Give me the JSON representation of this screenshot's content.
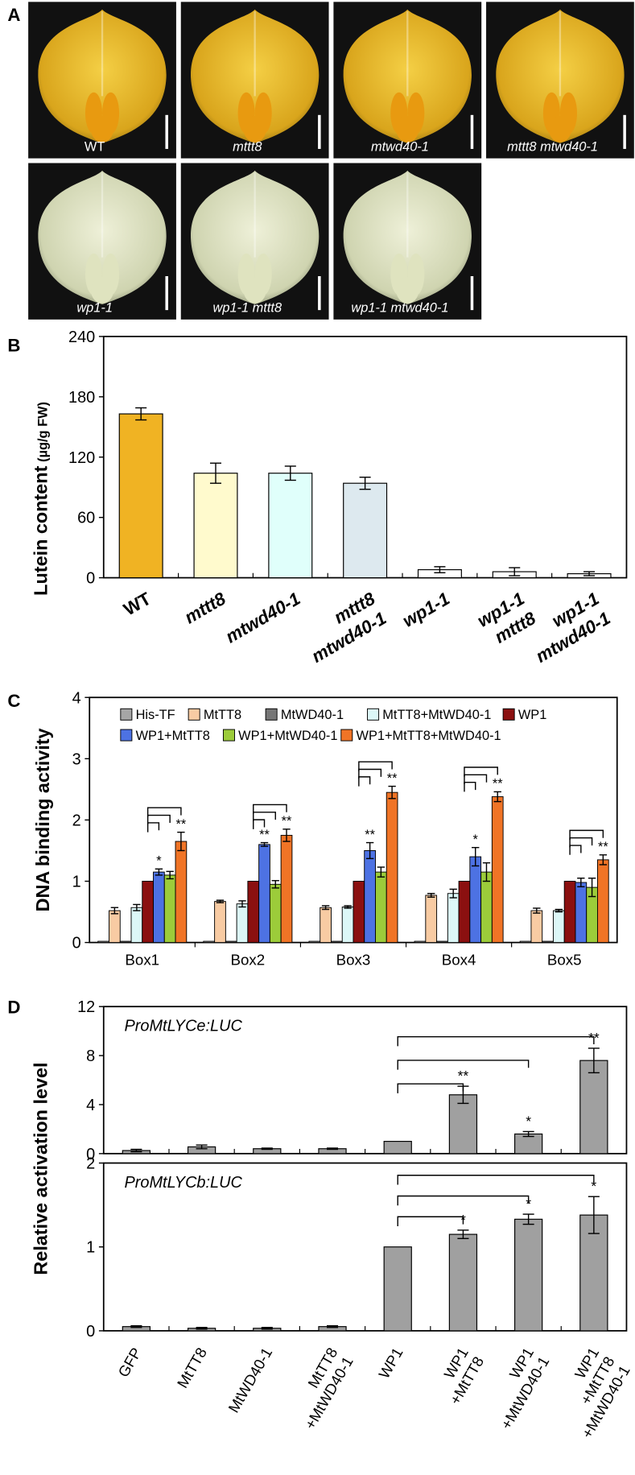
{
  "photo_panel": {
    "panel_label": "A",
    "photos": [
      "WT",
      "mttt8",
      "mtwd40-1",
      "mttt8 mtwd40-1",
      "wp1-1",
      "wp1-1 mttt8",
      "wp1-1 mtwd40-1"
    ]
  },
  "chart_data": [
    {
      "type": "bar",
      "panel_label": "B",
      "ylabel": "Lutein content",
      "ylabel_unit": "(µg/g FW)",
      "categories": [
        "WT",
        "mttt8",
        "mtwd40-1",
        "mttt8\nmtwd40-1",
        "wp1-1",
        "wp1-1\nmttt8",
        "wp1-1\nmtwd40-1"
      ],
      "values": [
        163,
        104,
        104,
        94,
        8,
        6,
        4
      ],
      "errors": [
        6,
        10,
        7,
        6,
        3,
        4,
        2
      ],
      "colors": [
        "#f0b323",
        "#fffacd",
        "#e0fffb",
        "#dde9ef",
        "#ffffff",
        "#ffffff",
        "#ffffff"
      ],
      "ylim": [
        0,
        240
      ],
      "yticks": [
        0,
        60,
        120,
        180,
        240
      ]
    },
    {
      "type": "grouped-bar",
      "panel_label": "C",
      "ylabel": "DNA binding activity",
      "categories": [
        "Box1",
        "Box2",
        "Box3",
        "Box4",
        "Box5"
      ],
      "series": [
        {
          "name": "His-TF",
          "color": "#a6a6a6",
          "values": [
            0.02,
            0.02,
            0.02,
            0.02,
            0.02
          ],
          "errors": [
            0,
            0,
            0,
            0,
            0
          ],
          "significance": [
            null,
            null,
            null,
            null,
            null
          ]
        },
        {
          "name": "MtTT8",
          "color": "#f8cba3",
          "values": [
            0.52,
            0.67,
            0.57,
            0.77,
            0.52
          ],
          "errors": [
            0.05,
            0.02,
            0.03,
            0.03,
            0.04
          ],
          "significance": [
            null,
            null,
            null,
            null,
            null
          ]
        },
        {
          "name": "MtWD40-1",
          "color": "#767676",
          "values": [
            0.02,
            0.02,
            0.02,
            0.02,
            0.02
          ],
          "errors": [
            0,
            0,
            0,
            0,
            0
          ],
          "significance": [
            null,
            null,
            null,
            null,
            null
          ]
        },
        {
          "name": "MtTT8+MtWD40-1",
          "color": "#dcf7f7",
          "values": [
            0.57,
            0.63,
            0.58,
            0.8,
            0.52
          ],
          "errors": [
            0.05,
            0.05,
            0.02,
            0.07,
            0.02
          ],
          "significance": [
            null,
            null,
            null,
            null,
            null
          ]
        },
        {
          "name": "WP1",
          "color": "#8b1010",
          "values": [
            1,
            1,
            1,
            1,
            1
          ],
          "errors": [
            0,
            0,
            0,
            0,
            0
          ],
          "significance": [
            null,
            null,
            null,
            null,
            null
          ]
        },
        {
          "name": "WP1+MtTT8",
          "color": "#4d72e3",
          "values": [
            1.15,
            1.6,
            1.5,
            1.4,
            0.98
          ],
          "errors": [
            0.05,
            0.03,
            0.13,
            0.15,
            0.07
          ],
          "significance": [
            "*",
            "**",
            "**",
            "*",
            null
          ]
        },
        {
          "name": "WP1+MtWD40-1",
          "color": "#9ccc3a",
          "values": [
            1.1,
            0.95,
            1.15,
            1.15,
            0.9
          ],
          "errors": [
            0.06,
            0.06,
            0.08,
            0.15,
            0.15
          ],
          "significance": [
            null,
            null,
            null,
            null,
            null
          ]
        },
        {
          "name": "WP1+MtTT8+MtWD40-1",
          "color": "#f07426",
          "values": [
            1.65,
            1.75,
            2.45,
            2.38,
            1.35
          ],
          "errors": [
            0.15,
            0.1,
            0.1,
            0.08,
            0.08
          ],
          "significance": [
            "**",
            "**",
            "**",
            "**",
            "**"
          ]
        }
      ],
      "ylim": [
        0,
        4
      ],
      "yticks": [
        0,
        1,
        2,
        3,
        4
      ]
    },
    {
      "type": "bar",
      "panel_label": "D",
      "ylabel": "Relative activation level",
      "annotation": "ProMtLYCe:LUC",
      "values": [
        0.25,
        0.55,
        0.4,
        0.4,
        1.0,
        4.8,
        1.6,
        7.6
      ],
      "errors": [
        0.1,
        0.15,
        0.05,
        0.05,
        0,
        0.7,
        0.2,
        1.0
      ],
      "significance": [
        null,
        null,
        null,
        null,
        null,
        "**",
        "*",
        "**"
      ],
      "color": "#a0a0a0",
      "ylim": [
        0,
        12
      ],
      "yticks": [
        0,
        4,
        8,
        12
      ]
    },
    {
      "type": "bar",
      "annotation": "ProMtLYCb:LUC",
      "categories": [
        "GFP",
        "MtTT8",
        "MtWD40-1",
        "MtTT8\n+MtWD40-1",
        "WP1",
        "WP1\n+MtTT8",
        "WP1\n+MtWD40-1",
        "WP1\n+MtTT8\n+MtWD40-1"
      ],
      "values": [
        0.05,
        0.03,
        0.03,
        0.05,
        1.0,
        1.15,
        1.33,
        1.38
      ],
      "errors": [
        0.01,
        0.01,
        0.01,
        0.01,
        0,
        0.05,
        0.06,
        0.22
      ],
      "significance": [
        null,
        null,
        null,
        null,
        null,
        "*",
        "*",
        "*"
      ],
      "color": "#a0a0a0",
      "ylim": [
        0,
        2
      ],
      "yticks": [
        0,
        1,
        2
      ]
    }
  ]
}
